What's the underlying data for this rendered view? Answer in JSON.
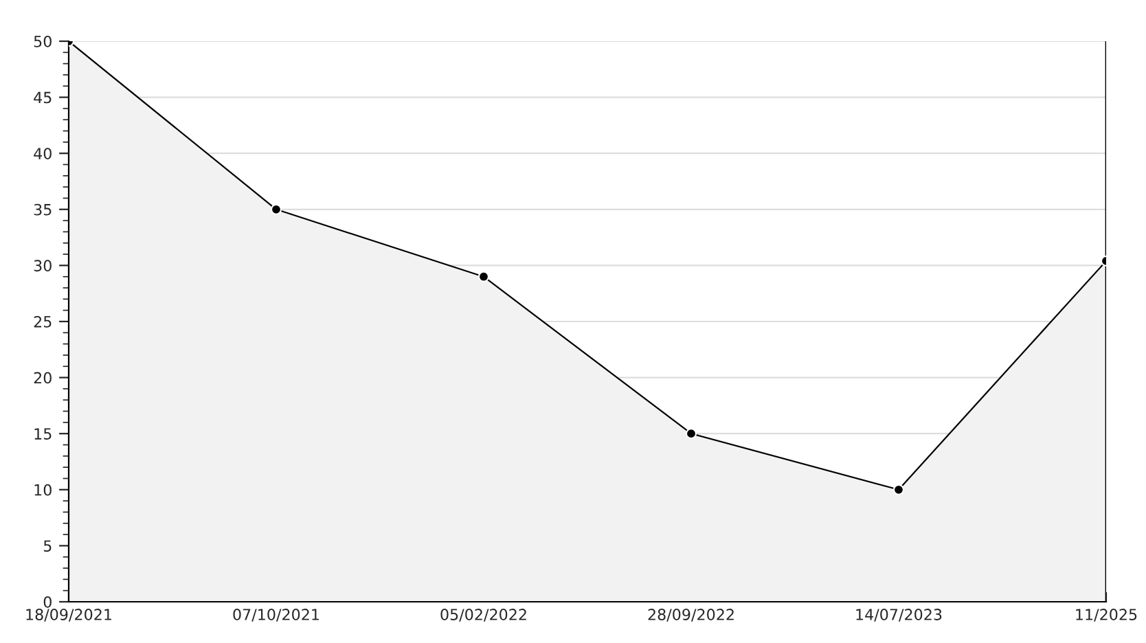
{
  "chart_data": {
    "type": "area",
    "categories": [
      "18/09/2021",
      "07/10/2021",
      "05/02/2022",
      "28/09/2022",
      "14/07/2023",
      "11/2025"
    ],
    "series": [
      {
        "color": "#000000",
        "values": [
          50,
          35,
          29,
          15,
          10,
          30.4
        ]
      }
    ],
    "ylim": [
      0,
      50
    ],
    "yticks": [
      0,
      5,
      10,
      15,
      20,
      25,
      30,
      35,
      40,
      45,
      50
    ],
    "grid": "y",
    "marker": "circle",
    "line_style": "solid"
  }
}
